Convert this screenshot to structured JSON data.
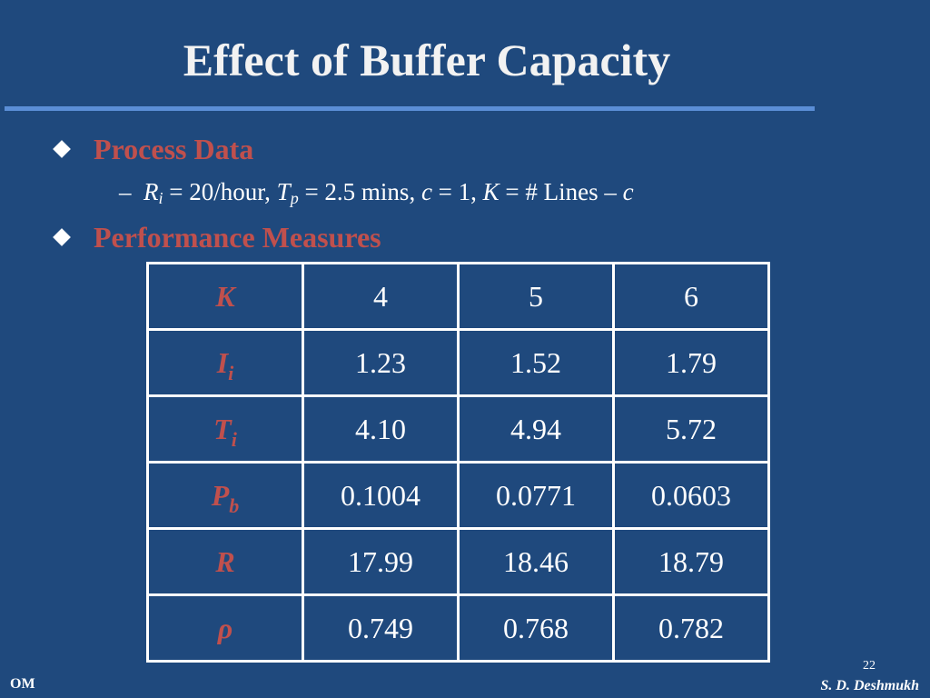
{
  "title": "Effect of Buffer Capacity",
  "bullets": [
    {
      "label": "Process Data"
    },
    {
      "label": "Performance Measures"
    }
  ],
  "process_data": {
    "dash": "–",
    "ri_sym": "R",
    "ri_sub": "i",
    "ri_val": " = 20/hour, ",
    "tp_sym": "T",
    "tp_sub": "p",
    "tp_val": " = 2.5 mins",
    "comma1": ", ",
    "c_sym": "c",
    "c_val": " = 1, ",
    "k_sym": "K",
    "k_val": " = # Lines – ",
    "c2_sym": "c"
  },
  "table": {
    "rows": [
      {
        "sym": "K",
        "sub": "",
        "values": [
          "4",
          "5",
          "6"
        ]
      },
      {
        "sym": "I",
        "sub": "i",
        "values": [
          "1.23",
          "1.52",
          "1.79"
        ]
      },
      {
        "sym": "T",
        "sub": "i",
        "values": [
          "4.10",
          "4.94",
          "5.72"
        ]
      },
      {
        "sym": "P",
        "sub": "b",
        "values": [
          "0.1004",
          "0.0771",
          "0.0603"
        ]
      },
      {
        "sym": "R",
        "sub": "",
        "values": [
          "17.99",
          "18.46",
          "18.79"
        ]
      },
      {
        "sym": "ρ",
        "sub": "",
        "values": [
          "0.749",
          "0.768",
          "0.782"
        ]
      }
    ]
  },
  "footer": {
    "left": "OM",
    "page_number": "22",
    "author": "S. D. Deshmukh"
  },
  "colors": {
    "background": "#1f497d",
    "accent_red": "#c0504d",
    "rule_blue": "#5b8ed6"
  }
}
